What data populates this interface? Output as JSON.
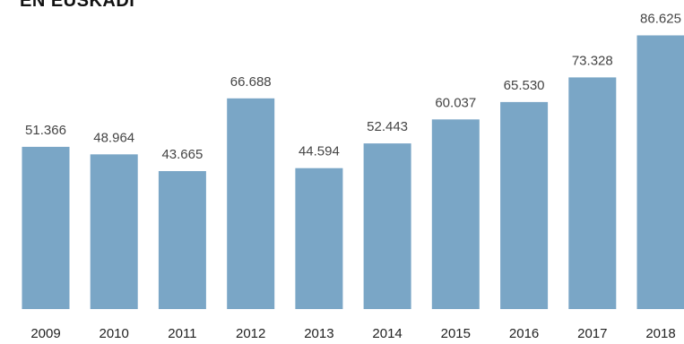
{
  "chart_data": {
    "type": "bar",
    "title": "EN EUSKADI",
    "categories": [
      "2009",
      "2010",
      "2011",
      "2012",
      "2013",
      "2014",
      "2015",
      "2016",
      "2017",
      "2018"
    ],
    "values": [
      51366,
      48964,
      43665,
      66688,
      44594,
      52443,
      60037,
      65530,
      73328,
      86625
    ],
    "data_labels": [
      "51.366",
      "48.964",
      "43.665",
      "66.688",
      "44.594",
      "52.443",
      "60.037",
      "65.530",
      "73.328",
      "86.625"
    ],
    "ylim": [
      0,
      95000
    ],
    "grid": false,
    "colors": {
      "bar": "#7aa6c6",
      "text": "#333333"
    }
  }
}
